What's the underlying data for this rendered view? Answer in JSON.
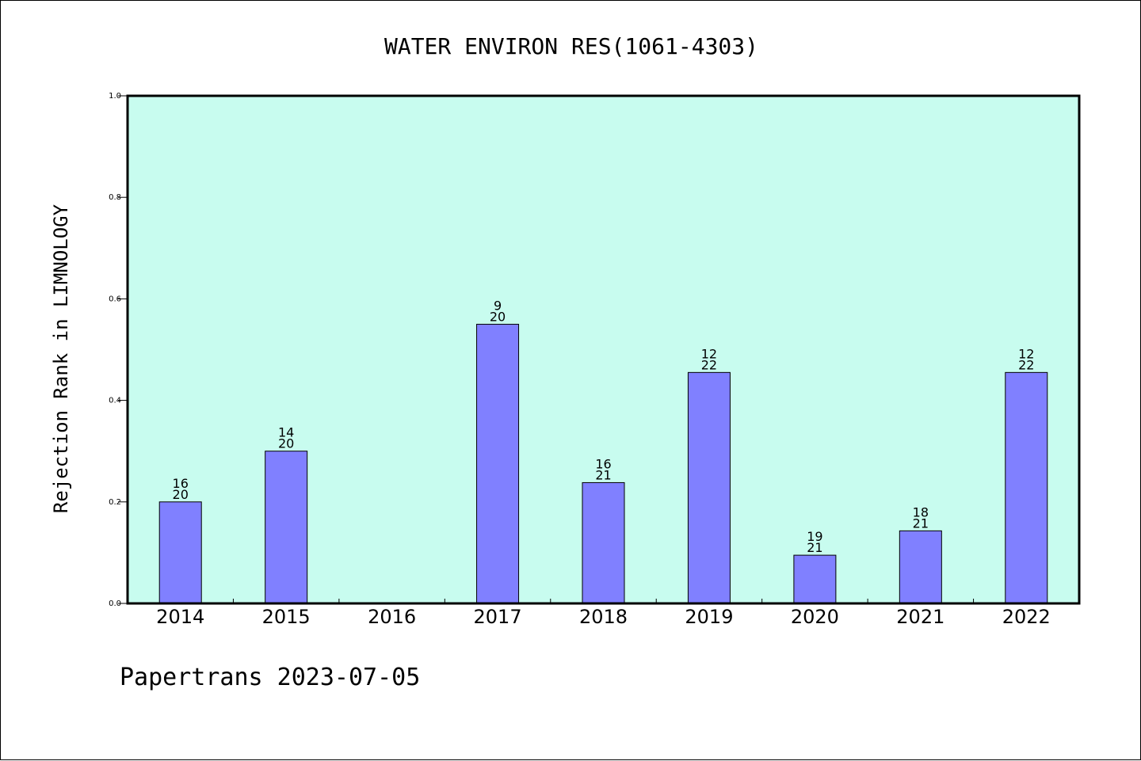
{
  "chart_data": {
    "type": "bar",
    "title": "WATER ENVIRON RES(1061-4303)",
    "ylabel": "Rejection Rank in LIMNOLOGY",
    "xlabel": "",
    "categories": [
      "2014",
      "2015",
      "2016",
      "2017",
      "2018",
      "2019",
      "2020",
      "2021",
      "2022"
    ],
    "values": [
      0.2,
      0.3,
      null,
      0.55,
      0.238,
      0.455,
      0.095,
      0.143,
      0.455
    ],
    "bar_labels": [
      [
        "16",
        "20"
      ],
      [
        "14",
        "20"
      ],
      null,
      [
        "9",
        "20"
      ],
      [
        "16",
        "21"
      ],
      [
        "12",
        "22"
      ],
      [
        "19",
        "21"
      ],
      [
        "18",
        "21"
      ],
      [
        "12",
        "22"
      ]
    ],
    "ylim": [
      0,
      1.0
    ],
    "yticks": [
      "0.0",
      "0.2",
      "0.4",
      "0.6",
      "0.8",
      "1.0"
    ],
    "grid": false,
    "colors": {
      "plot_background": "#c8fcef",
      "bar_fill": "#8080ff",
      "bar_stroke": "#000000",
      "axes": "#000000"
    }
  },
  "footer": "Papertrans 2023-07-05"
}
